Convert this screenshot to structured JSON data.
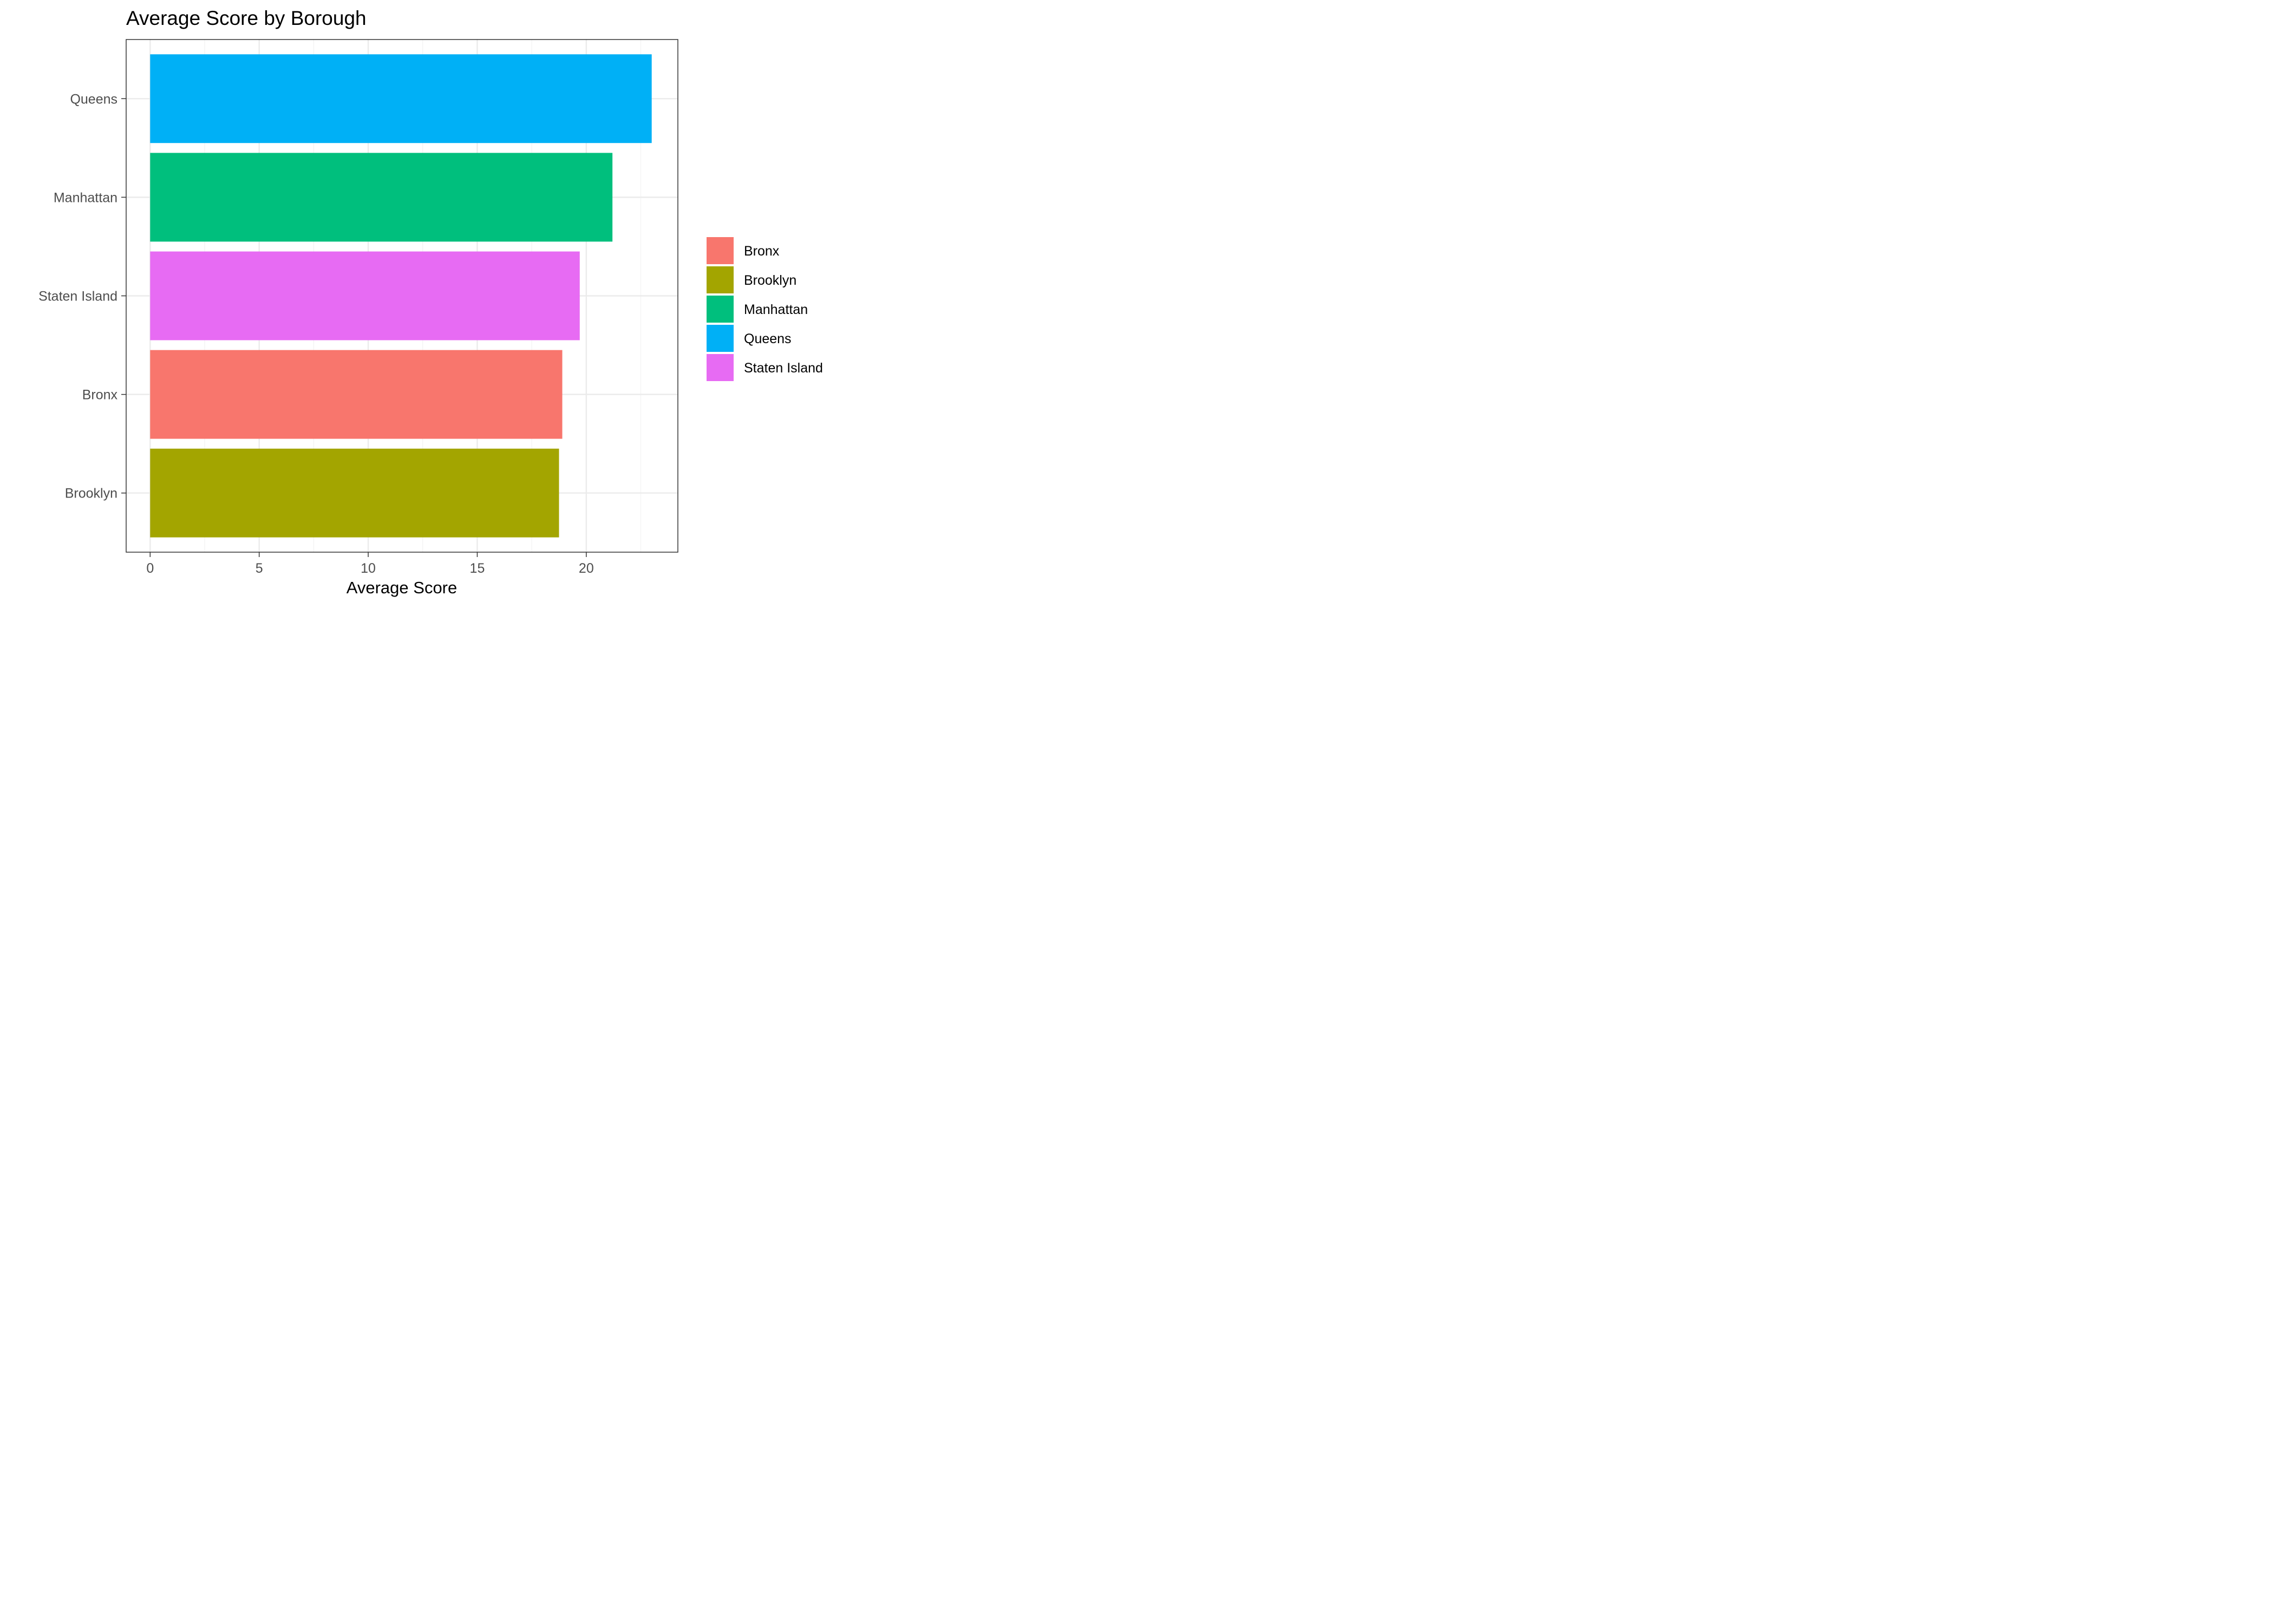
{
  "chart_data": {
    "type": "bar",
    "orientation": "horizontal",
    "title": "Average Score by Borough",
    "xlabel": "Average Score",
    "ylabel": "",
    "xlim": [
      -1.1,
      24.2
    ],
    "x_ticks": [
      0,
      5,
      10,
      15,
      20
    ],
    "grid": true,
    "legend_position": "right",
    "categories": [
      "Queens",
      "Manhattan",
      "Staten Island",
      "Bronx",
      "Brooklyn"
    ],
    "values": [
      23.0,
      21.2,
      19.7,
      18.9,
      18.75
    ],
    "colors": [
      "#00B0F6",
      "#00BF7D",
      "#E76BF3",
      "#F8766D",
      "#A3A500"
    ],
    "legend": [
      {
        "label": "Bronx",
        "color": "#F8766D"
      },
      {
        "label": "Brooklyn",
        "color": "#A3A500"
      },
      {
        "label": "Manhattan",
        "color": "#00BF7D"
      },
      {
        "label": "Queens",
        "color": "#00B0F6"
      },
      {
        "label": "Staten Island",
        "color": "#E76BF3"
      }
    ]
  }
}
